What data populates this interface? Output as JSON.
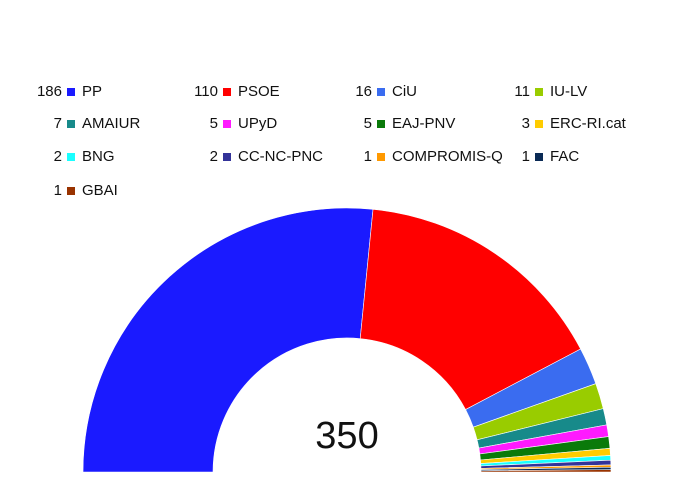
{
  "chart_data": {
    "type": "parliament",
    "categories": [
      "PP",
      "PSOE",
      "CiU",
      "IU-LV",
      "AMAIUR",
      "UPyD",
      "EAJ-PNV",
      "ERC-RI.cat",
      "BNG",
      "CC-NC-PNC",
      "COMPROMIS-Q",
      "FAC",
      "GBAI"
    ],
    "values": [
      186,
      110,
      16,
      11,
      7,
      5,
      5,
      3,
      2,
      2,
      1,
      1,
      1
    ],
    "colors": [
      "#1a1aff",
      "#ff0000",
      "#3a6cf0",
      "#99cc00",
      "#178a8a",
      "#ff1aff",
      "#0a7a0a",
      "#ffcc00",
      "#1affff",
      "#333399",
      "#ff9900",
      "#0a2a55",
      "#993300"
    ],
    "total": 350,
    "legend": "top"
  }
}
